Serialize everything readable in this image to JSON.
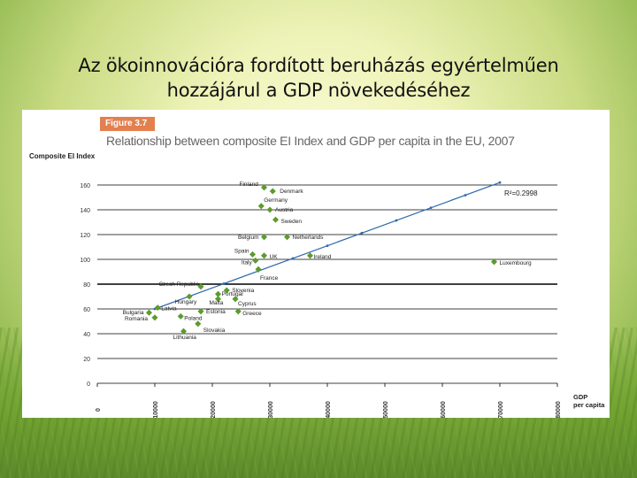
{
  "slide": {
    "title_line1": "Az ökoinnovációra fordított beruházás egyértelműen",
    "title_line2": "hozzájárul a GDP növekedéséhez"
  },
  "figure": {
    "badge": "Figure 3.7",
    "title": "Relationship between composite EI Index and GDP per capita in the EU, 2007",
    "accent_color": "#e3804f"
  },
  "chart_data": {
    "type": "scatter",
    "title": "Relationship between composite EI Index and GDP per capita in the EU, 2007",
    "ylabel": "Composite EI Index",
    "xlabel": "GDP per capita",
    "xlabel_lines": [
      "GDP",
      "per capita"
    ],
    "xlim": [
      0,
      80000
    ],
    "ylim": [
      0,
      160
    ],
    "xticks": [
      "0",
      "10000",
      "20000",
      "30000",
      "40000",
      "50000",
      "60000",
      "70000",
      "80000"
    ],
    "yticks": [
      "160",
      "140",
      "120",
      "100",
      "80",
      "60",
      "40",
      "20",
      "0"
    ],
    "grid": true,
    "annotation": "R²=0.2998",
    "point_color": "#5c9b2e",
    "trend_color": "#2f6aad",
    "trendline": {
      "x": [
        10000,
        70000
      ],
      "y": [
        60,
        162
      ]
    },
    "points": [
      {
        "label": "Finland",
        "x": 29000,
        "y": 158
      },
      {
        "label": "Denmark",
        "x": 30500,
        "y": 155
      },
      {
        "label": "Germany",
        "x": 28500,
        "y": 143
      },
      {
        "label": "Austria",
        "x": 30000,
        "y": 140
      },
      {
        "label": "Sweden",
        "x": 31000,
        "y": 132
      },
      {
        "label": "Belgium",
        "x": 29000,
        "y": 118
      },
      {
        "label": "Netherlands",
        "x": 33000,
        "y": 118
      },
      {
        "label": "Spain",
        "x": 27000,
        "y": 104
      },
      {
        "label": "UK",
        "x": 29000,
        "y": 103
      },
      {
        "label": "Ireland",
        "x": 37000,
        "y": 103
      },
      {
        "label": "Italy",
        "x": 27500,
        "y": 99
      },
      {
        "label": "Luxembourg",
        "x": 69000,
        "y": 98
      },
      {
        "label": "France",
        "x": 28000,
        "y": 92
      },
      {
        "label": "Czech Republic",
        "x": 18000,
        "y": 78
      },
      {
        "label": "Slovenia",
        "x": 22500,
        "y": 75
      },
      {
        "label": "Portugal",
        "x": 21000,
        "y": 72
      },
      {
        "label": "Hungary",
        "x": 16000,
        "y": 70
      },
      {
        "label": "Malta",
        "x": 21000,
        "y": 68
      },
      {
        "label": "Cyprus",
        "x": 24000,
        "y": 68
      },
      {
        "label": "Latvia",
        "x": 10500,
        "y": 61
      },
      {
        "label": "Estonia",
        "x": 18000,
        "y": 58
      },
      {
        "label": "Greece",
        "x": 24500,
        "y": 58
      },
      {
        "label": "Bulgaria",
        "x": 9000,
        "y": 57
      },
      {
        "label": "Poland",
        "x": 14500,
        "y": 54
      },
      {
        "label": "Romania",
        "x": 10000,
        "y": 53
      },
      {
        "label": "Slovakia",
        "x": 17500,
        "y": 48
      },
      {
        "label": "Lithuania",
        "x": 15000,
        "y": 42
      }
    ]
  }
}
